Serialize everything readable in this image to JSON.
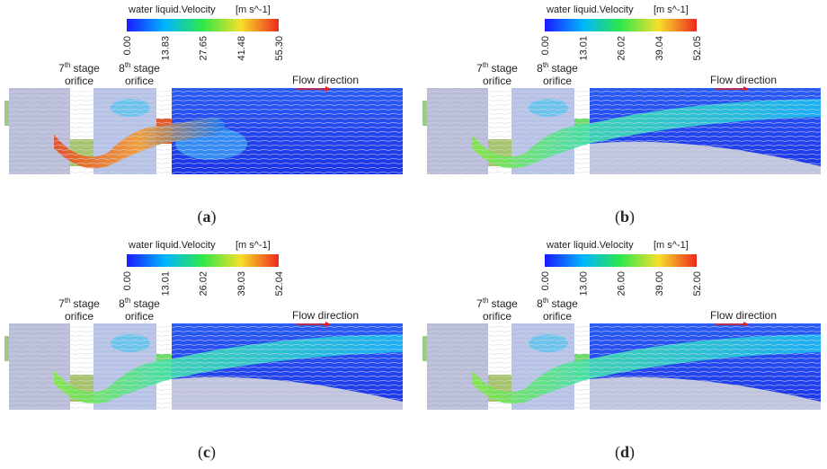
{
  "panels": [
    {
      "colorbar": {
        "title": "water liquid.Velocity",
        "unit": "[m s^-1]",
        "ticks": [
          "0.00",
          "13.83",
          "27.65",
          "41.48",
          "55.30"
        ]
      },
      "orifice_7": {
        "number": "7",
        "sup": "th",
        "word": "stage",
        "line2": "orifice"
      },
      "orifice_8": {
        "number": "8",
        "sup": "th",
        "word": "stage",
        "line2": "orifice"
      },
      "flow": "Flow direction",
      "caption": {
        "open": "(",
        "letter": "a",
        "close": ")"
      }
    },
    {
      "colorbar": {
        "title": "water liquid.Velocity",
        "unit": "[m s^-1]",
        "ticks": [
          "0.00",
          "13.01",
          "26.02",
          "39.04",
          "52.05"
        ]
      },
      "orifice_7": {
        "number": "7",
        "sup": "th",
        "word": "stage",
        "line2": "orifice"
      },
      "orifice_8": {
        "number": "8",
        "sup": "th",
        "word": "stage",
        "line2": "orifice"
      },
      "flow": "Flow direction",
      "caption": {
        "open": "(",
        "letter": "b",
        "close": ")"
      }
    },
    {
      "colorbar": {
        "title": "water liquid.Velocity",
        "unit": "[m s^-1]",
        "ticks": [
          "0.00",
          "13.01",
          "26.02",
          "39.03",
          "52.04"
        ]
      },
      "orifice_7": {
        "number": "7",
        "sup": "th",
        "word": "stage",
        "line2": "orifice"
      },
      "orifice_8": {
        "number": "8",
        "sup": "th",
        "word": "stage",
        "line2": "orifice"
      },
      "flow": "Flow direction",
      "caption": {
        "open": "(",
        "letter": "c",
        "close": ")"
      }
    },
    {
      "colorbar": {
        "title": "water liquid.Velocity",
        "unit": "[m s^-1]",
        "ticks": [
          "0.00",
          "13.00",
          "26.00",
          "39.00",
          "52.00"
        ]
      },
      "orifice_7": {
        "number": "7",
        "sup": "th",
        "word": "stage",
        "line2": "orifice"
      },
      "orifice_8": {
        "number": "8",
        "sup": "th",
        "word": "stage",
        "line2": "orifice"
      },
      "flow": "Flow direction",
      "caption": {
        "open": "(",
        "letter": "d",
        "close": ")"
      }
    }
  ]
}
